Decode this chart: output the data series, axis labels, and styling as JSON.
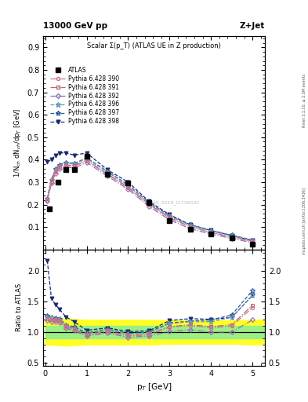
{
  "title_top": "13000 GeV pp",
  "title_right": "Z+Jet",
  "plot_title": "Scalar Σ(p_T) (ATLAS UE in Z production)",
  "watermark": "ATLAS_2019_I1736531",
  "right_label": "Rivet 3.1.10, ≥ 2.5M events",
  "right_label2": "mcplots.cern.ch [arXiv:1306.3436]",
  "ylabel_main": "1/N$_{ch}$ dN$_{ch}$/dp$_T$ [GeV]",
  "ylabel_ratio": "Ratio to ATLAS",
  "xlabel": "p$_T$ [GeV]",
  "atlas_x": [
    0.1,
    0.3,
    0.5,
    0.7,
    1.0,
    1.5,
    2.0,
    2.5,
    3.0,
    3.5,
    4.0,
    4.5,
    5.0
  ],
  "atlas_y": [
    0.18,
    0.3,
    0.355,
    0.355,
    0.415,
    0.335,
    0.295,
    0.21,
    0.13,
    0.09,
    0.07,
    0.05,
    0.025
  ],
  "mc_x": [
    0.05,
    0.15,
    0.25,
    0.35,
    0.5,
    0.7,
    1.0,
    1.5,
    2.0,
    2.5,
    3.0,
    3.5,
    4.0,
    4.5,
    5.0
  ],
  "pythia390_y": [
    0.22,
    0.3,
    0.345,
    0.365,
    0.375,
    0.37,
    0.395,
    0.335,
    0.275,
    0.2,
    0.14,
    0.1,
    0.075,
    0.055,
    0.035
  ],
  "pythia391_y": [
    0.22,
    0.305,
    0.35,
    0.37,
    0.378,
    0.372,
    0.398,
    0.337,
    0.278,
    0.202,
    0.142,
    0.102,
    0.076,
    0.056,
    0.036
  ],
  "pythia392_y": [
    0.215,
    0.295,
    0.34,
    0.36,
    0.368,
    0.362,
    0.388,
    0.327,
    0.268,
    0.192,
    0.132,
    0.092,
    0.069,
    0.049,
    0.03
  ],
  "pythia396_y": [
    0.225,
    0.31,
    0.355,
    0.375,
    0.385,
    0.38,
    0.405,
    0.345,
    0.285,
    0.208,
    0.148,
    0.108,
    0.082,
    0.062,
    0.04
  ],
  "pythia397_y": [
    0.228,
    0.312,
    0.358,
    0.378,
    0.388,
    0.383,
    0.408,
    0.348,
    0.288,
    0.21,
    0.15,
    0.11,
    0.084,
    0.064,
    0.042
  ],
  "pythia398_y": [
    0.39,
    0.4,
    0.42,
    0.43,
    0.43,
    0.42,
    0.43,
    0.355,
    0.3,
    0.215,
    0.155,
    0.11,
    0.085,
    0.062,
    0.04
  ],
  "color390": "#c87890",
  "color391": "#b86878",
  "color392": "#9070b8",
  "color396": "#6898b8",
  "color397": "#2858a0",
  "color398": "#182870",
  "color_atlas": "#000000",
  "ylim_main": [
    0.0,
    0.95
  ],
  "ylim_ratio": [
    0.45,
    2.35
  ],
  "yticks_main": [
    0.1,
    0.2,
    0.3,
    0.4,
    0.5,
    0.6,
    0.7,
    0.8,
    0.9
  ],
  "yticks_ratio": [
    0.5,
    1.0,
    1.5,
    2.0
  ],
  "xlim": [
    -0.05,
    5.3
  ],
  "xticks": [
    0,
    1,
    2,
    3,
    4,
    5
  ],
  "ratio390": [
    1.22,
    1.2,
    1.19,
    1.18,
    1.09,
    1.04,
    0.95,
    1.01,
    0.935,
    0.955,
    1.08,
    1.11,
    1.07,
    1.1,
    1.4
  ],
  "ratio391": [
    1.22,
    1.21,
    1.2,
    1.19,
    1.1,
    1.05,
    0.958,
    1.02,
    0.945,
    0.965,
    1.09,
    1.12,
    1.09,
    1.12,
    1.44
  ],
  "ratio392": [
    1.19,
    1.17,
    1.17,
    1.16,
    1.06,
    1.02,
    0.935,
    0.985,
    0.915,
    0.935,
    1.01,
    1.04,
    1.0,
    1.0,
    1.2
  ],
  "ratio396": [
    1.25,
    1.24,
    1.22,
    1.21,
    1.11,
    1.07,
    0.975,
    1.04,
    0.97,
    0.99,
    1.14,
    1.17,
    1.17,
    1.24,
    1.6
  ],
  "ratio397": [
    1.27,
    1.25,
    1.235,
    1.22,
    1.12,
    1.085,
    0.985,
    1.05,
    0.978,
    1.0,
    1.15,
    1.18,
    1.2,
    1.28,
    1.68
  ],
  "ratio398": [
    2.17,
    1.55,
    1.45,
    1.37,
    1.25,
    1.17,
    1.03,
    1.07,
    1.01,
    1.02,
    1.19,
    1.22,
    1.21,
    1.24,
    1.6
  ],
  "band_x": [
    0.0,
    0.5,
    1.0,
    1.5,
    2.0,
    2.5,
    3.0,
    3.5,
    4.0,
    4.5,
    5.0,
    5.3
  ],
  "green_band_low": [
    0.9,
    0.9,
    0.9,
    0.9,
    0.9,
    0.9,
    0.9,
    0.9,
    0.9,
    0.9,
    0.9,
    0.9
  ],
  "green_band_high": [
    1.1,
    1.1,
    1.1,
    1.1,
    1.1,
    1.1,
    1.1,
    1.1,
    1.1,
    1.1,
    1.1,
    1.1
  ],
  "yellow_band_low": [
    0.8,
    0.78,
    0.8,
    0.8,
    0.8,
    0.8,
    0.81,
    0.81,
    0.81,
    0.81,
    0.8,
    0.8
  ],
  "yellow_band_high": [
    1.2,
    1.22,
    1.2,
    1.2,
    1.2,
    1.2,
    1.19,
    1.19,
    1.19,
    1.19,
    1.2,
    1.2
  ]
}
